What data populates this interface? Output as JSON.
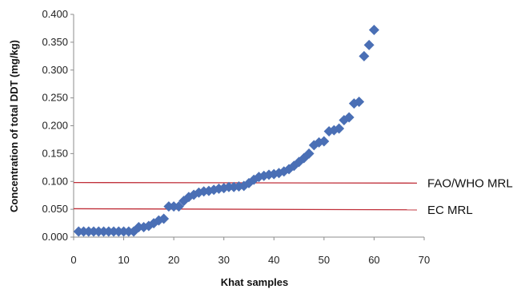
{
  "chart_data": {
    "type": "scatter",
    "title": "",
    "xlabel": "Khat samples",
    "ylabel": "Concentration of total DDT (mg/kg)",
    "xlim": [
      0,
      70
    ],
    "ylim": [
      0,
      0.4
    ],
    "x_ticks": [
      "0",
      "10",
      "20",
      "30",
      "40",
      "50",
      "60",
      "70"
    ],
    "y_ticks": [
      "0.000",
      "0.050",
      "0.100",
      "0.150",
      "0.200",
      "0.250",
      "0.300",
      "0.350",
      "0.400"
    ],
    "grid": false,
    "legend": "none",
    "marker": "diamond",
    "marker_color": "#4a6fb5",
    "series": [
      {
        "x": [
          1,
          2,
          3,
          4,
          5,
          6,
          7,
          8,
          9,
          10,
          11,
          12,
          13,
          14,
          15,
          16,
          17,
          18,
          19,
          20,
          21,
          22,
          23,
          24,
          25,
          26,
          27,
          28,
          29,
          30,
          31,
          32,
          33,
          34,
          35,
          36,
          37,
          38,
          39,
          40,
          41,
          42,
          43,
          44,
          45,
          46,
          47,
          48,
          49,
          50,
          51,
          52,
          53,
          54,
          55,
          56,
          57,
          58,
          59,
          60
        ],
        "values": [
          0.01,
          0.01,
          0.01,
          0.01,
          0.01,
          0.01,
          0.01,
          0.01,
          0.01,
          0.01,
          0.01,
          0.01,
          0.018,
          0.018,
          0.02,
          0.025,
          0.03,
          0.033,
          0.055,
          0.055,
          0.055,
          0.065,
          0.072,
          0.076,
          0.08,
          0.082,
          0.083,
          0.085,
          0.087,
          0.088,
          0.09,
          0.09,
          0.091,
          0.092,
          0.097,
          0.103,
          0.108,
          0.11,
          0.112,
          0.113,
          0.115,
          0.118,
          0.122,
          0.128,
          0.135,
          0.142,
          0.15,
          0.165,
          0.17,
          0.172,
          0.19,
          0.192,
          0.195,
          0.21,
          0.215,
          0.24,
          0.243,
          0.325,
          0.345,
          0.372
        ]
      }
    ],
    "reference_lines": [
      {
        "label": "FAO/WHO MRL",
        "start": 0.098,
        "end": 0.097,
        "color": "#c0303a"
      },
      {
        "label": "EC MRL",
        "start": 0.051,
        "end": 0.049,
        "color": "#c0303a"
      }
    ]
  }
}
